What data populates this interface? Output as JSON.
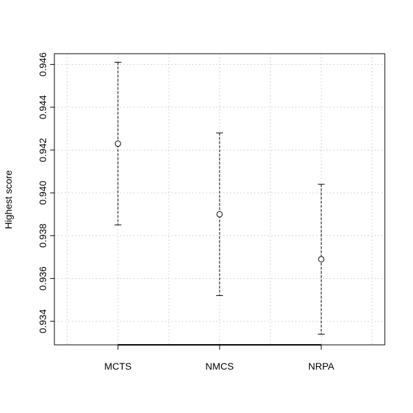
{
  "chart_data": {
    "type": "scatter",
    "title": "",
    "xlabel": "",
    "ylabel": "Highest score",
    "categories": [
      "MCTS",
      "NMCS",
      "NRPA"
    ],
    "series": [
      {
        "values": [
          0.9423,
          0.939,
          0.9369
        ],
        "lower": [
          0.9385,
          0.9352,
          0.9334
        ],
        "upper": [
          0.9461,
          0.9428,
          0.9404
        ]
      }
    ],
    "ylim": [
      0.9329,
      0.9465
    ],
    "yticks": [
      "0.934",
      "0.936",
      "0.938",
      "0.940",
      "0.942",
      "0.944",
      "0.946"
    ],
    "grid": true,
    "legend": "none",
    "colors": {
      "axis": "#000000",
      "grid": "#d3d3d3",
      "marker": "#000000"
    }
  }
}
